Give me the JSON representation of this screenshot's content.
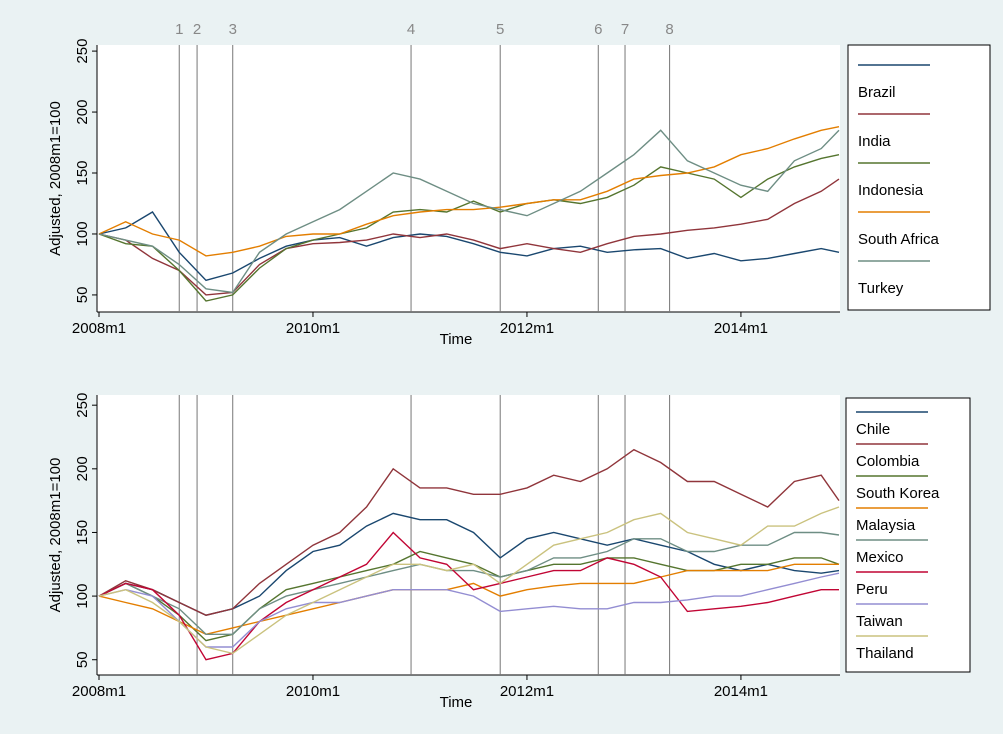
{
  "chart_data": [
    {
      "type": "line",
      "y_label": "Adjusted, 2008m1=100",
      "x_label": "Time",
      "x": [
        "2008m1",
        "2008m4",
        "2008m7",
        "2008m10",
        "2009m1",
        "2009m4",
        "2009m7",
        "2009m10",
        "2010m1",
        "2010m4",
        "2010m7",
        "2010m10",
        "2011m1",
        "2011m4",
        "2011m7",
        "2011m10",
        "2012m1",
        "2012m4",
        "2012m7",
        "2012m10",
        "2013m1",
        "2013m4",
        "2013m7",
        "2013m10",
        "2014m1",
        "2014m4",
        "2014m7",
        "2014m10",
        "2014m12"
      ],
      "xlim": [
        "2008m1",
        "2014m12"
      ],
      "xticks": [
        "2008m1",
        "2010m1",
        "2012m1",
        "2014m1"
      ],
      "ylim": [
        36,
        255
      ],
      "yticks": [
        50,
        100,
        150,
        200,
        250
      ],
      "events": [
        {
          "x": "2008m10",
          "label": "1"
        },
        {
          "x": "2008m12",
          "label": "2"
        },
        {
          "x": "2009m4",
          "label": "3"
        },
        {
          "x": "2010m12",
          "label": "4"
        },
        {
          "x": "2011m10",
          "label": "5"
        },
        {
          "x": "2012m9",
          "label": "6"
        },
        {
          "x": "2012m12",
          "label": "7"
        },
        {
          "x": "2013m5",
          "label": "8"
        }
      ],
      "series": [
        {
          "name": "Brazil",
          "color": "#1a476f",
          "values": [
            100,
            105,
            118,
            85,
            62,
            68,
            80,
            90,
            95,
            97,
            90,
            97,
            100,
            98,
            92,
            85,
            82,
            88,
            90,
            85,
            87,
            88,
            80,
            84,
            78,
            80,
            84,
            88,
            85
          ]
        },
        {
          "name": "India",
          "color": "#90353b",
          "values": [
            100,
            95,
            80,
            70,
            50,
            52,
            75,
            88,
            92,
            93,
            95,
            100,
            97,
            100,
            95,
            88,
            92,
            88,
            85,
            92,
            98,
            100,
            103,
            105,
            108,
            112,
            125,
            135,
            145
          ]
        },
        {
          "name": "Indonesia",
          "color": "#55752f",
          "values": [
            100,
            92,
            90,
            70,
            45,
            50,
            72,
            88,
            95,
            100,
            105,
            118,
            120,
            118,
            127,
            118,
            125,
            128,
            125,
            130,
            140,
            155,
            150,
            145,
            130,
            145,
            155,
            162,
            165
          ]
        },
        {
          "name": "South Africa",
          "color": "#e37e00",
          "values": [
            100,
            110,
            100,
            95,
            82,
            85,
            90,
            98,
            100,
            100,
            108,
            115,
            118,
            120,
            120,
            122,
            125,
            128,
            128,
            135,
            145,
            148,
            150,
            155,
            165,
            170,
            178,
            185,
            188
          ]
        },
        {
          "name": "Turkey",
          "color": "#6e8e84",
          "values": [
            100,
            95,
            90,
            75,
            55,
            52,
            85,
            100,
            110,
            120,
            135,
            150,
            145,
            135,
            125,
            120,
            115,
            125,
            135,
            150,
            165,
            185,
            160,
            150,
            140,
            135,
            160,
            170,
            185
          ]
        }
      ]
    },
    {
      "type": "line",
      "y_label": "Adjusted, 2008m1=100",
      "x_label": "Time",
      "x": [
        "2008m1",
        "2008m4",
        "2008m7",
        "2008m10",
        "2009m1",
        "2009m4",
        "2009m7",
        "2009m10",
        "2010m1",
        "2010m4",
        "2010m7",
        "2010m10",
        "2011m1",
        "2011m4",
        "2011m7",
        "2011m10",
        "2012m1",
        "2012m4",
        "2012m7",
        "2012m10",
        "2013m1",
        "2013m4",
        "2013m7",
        "2013m10",
        "2014m1",
        "2014m4",
        "2014m7",
        "2014m10",
        "2014m12"
      ],
      "xlim": [
        "2008m1",
        "2014m12"
      ],
      "xticks": [
        "2008m1",
        "2010m1",
        "2012m1",
        "2014m1"
      ],
      "ylim": [
        38,
        258
      ],
      "yticks": [
        50,
        100,
        150,
        200,
        250
      ],
      "events": [
        "2008m10",
        "2008m12",
        "2009m4",
        "2010m12",
        "2011m10",
        "2012m9",
        "2012m12",
        "2013m5"
      ],
      "series": [
        {
          "name": "Chile",
          "color": "#1a476f",
          "values": [
            100,
            110,
            105,
            95,
            85,
            90,
            100,
            120,
            135,
            140,
            155,
            165,
            160,
            160,
            150,
            130,
            145,
            150,
            145,
            140,
            145,
            140,
            135,
            125,
            120,
            125,
            120,
            118,
            120
          ]
        },
        {
          "name": "Colombia",
          "color": "#90353b",
          "values": [
            100,
            112,
            105,
            95,
            85,
            90,
            110,
            125,
            140,
            150,
            170,
            200,
            185,
            185,
            180,
            180,
            185,
            195,
            190,
            200,
            215,
            205,
            190,
            190,
            180,
            170,
            190,
            195,
            175
          ]
        },
        {
          "name": "South Korea",
          "color": "#55752f",
          "values": [
            100,
            110,
            100,
            85,
            65,
            70,
            90,
            105,
            110,
            115,
            120,
            125,
            135,
            130,
            125,
            115,
            120,
            125,
            125,
            130,
            130,
            125,
            120,
            120,
            125,
            125,
            130,
            130,
            125
          ]
        },
        {
          "name": "Malaysia",
          "color": "#e37e00",
          "values": [
            100,
            95,
            90,
            80,
            70,
            75,
            80,
            85,
            90,
            95,
            100,
            105,
            105,
            105,
            110,
            100,
            105,
            108,
            110,
            110,
            110,
            115,
            120,
            120,
            120,
            120,
            125,
            125,
            125
          ]
        },
        {
          "name": "Mexico",
          "color": "#6e8e84",
          "values": [
            100,
            110,
            100,
            90,
            70,
            70,
            90,
            100,
            105,
            110,
            115,
            120,
            125,
            120,
            120,
            115,
            120,
            130,
            130,
            135,
            145,
            145,
            135,
            135,
            140,
            140,
            150,
            150,
            148
          ]
        },
        {
          "name": "Peru",
          "color": "#c10534",
          "values": [
            100,
            110,
            105,
            85,
            50,
            55,
            80,
            95,
            105,
            115,
            125,
            150,
            130,
            125,
            105,
            110,
            115,
            120,
            120,
            130,
            125,
            115,
            88,
            90,
            92,
            95,
            100,
            105,
            105
          ]
        },
        {
          "name": "Taiwan",
          "color": "#938dd2",
          "values": [
            100,
            105,
            100,
            80,
            60,
            60,
            80,
            90,
            95,
            95,
            100,
            105,
            105,
            105,
            100,
            88,
            90,
            92,
            90,
            90,
            95,
            95,
            97,
            100,
            100,
            105,
            110,
            115,
            118
          ]
        },
        {
          "name": "Thailand",
          "color": "#cac27e",
          "values": [
            100,
            105,
            95,
            80,
            60,
            55,
            70,
            85,
            95,
            105,
            115,
            125,
            125,
            120,
            125,
            110,
            125,
            140,
            145,
            150,
            160,
            165,
            150,
            145,
            140,
            155,
            155,
            165,
            170
          ]
        }
      ]
    }
  ]
}
